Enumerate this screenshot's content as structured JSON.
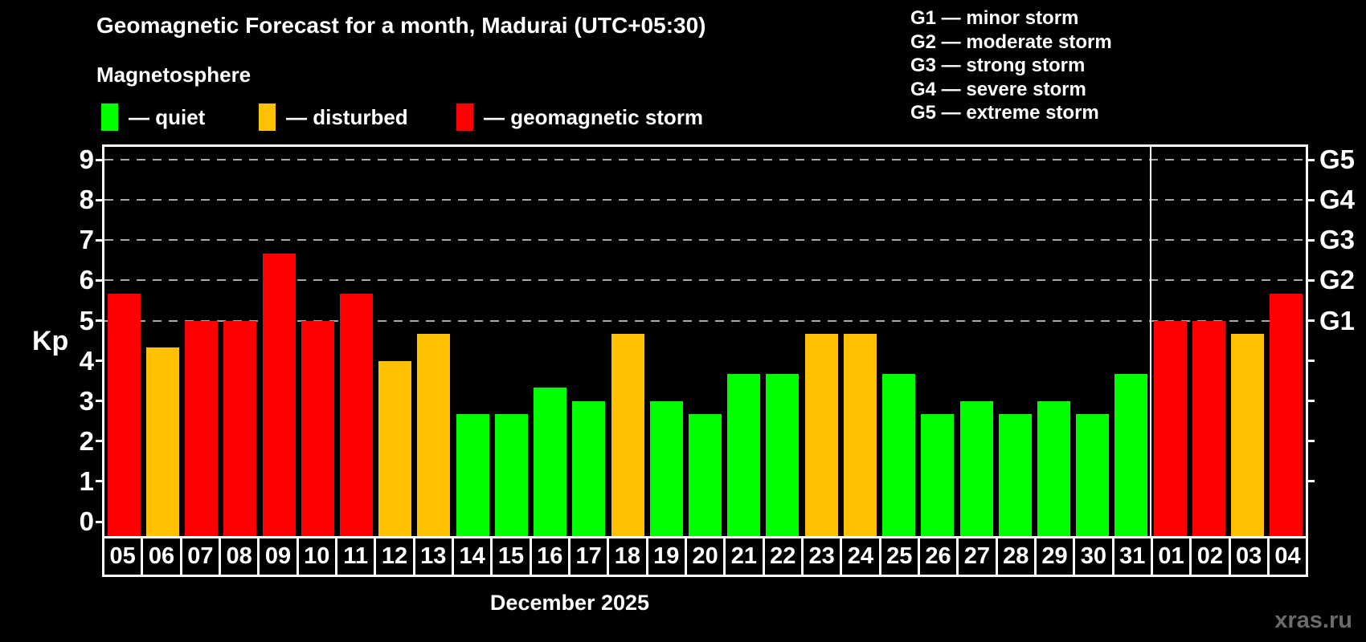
{
  "page": {
    "title": "Geomagnetic Forecast for a month, Madurai (UTC+05:30)",
    "subtitle": "Magnetosphere",
    "watermark": "xras.ru"
  },
  "status_legend": [
    {
      "key": "quiet",
      "label": "— quiet",
      "color": "#00ff00"
    },
    {
      "key": "disturbed",
      "label": "— disturbed",
      "color": "#ffc000"
    },
    {
      "key": "storm",
      "label": "— geomagnetic storm",
      "color": "#ff0000"
    }
  ],
  "g_scale_legend": [
    "G1 — minor storm",
    "G2 — moderate storm",
    "G3 — strong storm",
    "G4 — severe storm",
    "G5 — extreme storm"
  ],
  "footer": {
    "month_label": "December 2025"
  },
  "colors": {
    "background": "#000000",
    "text": "#ffffff",
    "grid": "#a8a8a8",
    "quiet": "#00ff00",
    "disturbed": "#ffc000",
    "storm": "#ff0000",
    "watermark": "#6b6b6b"
  },
  "chart_data": {
    "type": "bar",
    "title": "Geomagnetic Forecast for a month, Madurai (UTC+05:30)",
    "subtitle": "Magnetosphere",
    "xlabel": "December 2025",
    "ylabel": "Kp",
    "ylim": [
      0,
      9.33
    ],
    "grid": "horizontal dashed lines at Kp 5,6,7,8,9 (G1–G5 levels)",
    "legend_position": "top",
    "categories": [
      "05",
      "06",
      "07",
      "08",
      "09",
      "10",
      "11",
      "12",
      "13",
      "14",
      "15",
      "16",
      "17",
      "18",
      "19",
      "20",
      "21",
      "22",
      "23",
      "24",
      "25",
      "26",
      "27",
      "28",
      "29",
      "30",
      "31",
      "01",
      "02",
      "03",
      "04"
    ],
    "values": [
      5.67,
      4.33,
      5,
      5,
      6.67,
      5,
      5.67,
      4,
      4.67,
      2.67,
      2.67,
      3.33,
      3,
      4.67,
      3,
      2.67,
      3.67,
      3.67,
      4.67,
      4.67,
      3.67,
      2.67,
      3,
      2.67,
      3,
      2.67,
      3.67,
      5,
      5,
      4.67,
      5.67
    ],
    "statuses": [
      "storm",
      "disturbed",
      "storm",
      "storm",
      "storm",
      "storm",
      "storm",
      "disturbed",
      "disturbed",
      "quiet",
      "quiet",
      "quiet",
      "quiet",
      "disturbed",
      "quiet",
      "quiet",
      "quiet",
      "quiet",
      "disturbed",
      "disturbed",
      "quiet",
      "quiet",
      "quiet",
      "quiet",
      "quiet",
      "quiet",
      "quiet",
      "storm",
      "storm",
      "disturbed",
      "storm"
    ],
    "new_month_start_index": 27,
    "left_axis_ticks": [
      0,
      1,
      2,
      3,
      4,
      5,
      6,
      7,
      8,
      9
    ],
    "right_axis_ticks": [
      1,
      2,
      3,
      4,
      5,
      6,
      7,
      8,
      9
    ],
    "right_axis_labels": [
      {
        "kp": 5,
        "label": "G1"
      },
      {
        "kp": 6,
        "label": "G2"
      },
      {
        "kp": 7,
        "label": "G3"
      },
      {
        "kp": 8,
        "label": "G4"
      },
      {
        "kp": 9,
        "label": "G5"
      }
    ],
    "gridline_kps": [
      5,
      6,
      7,
      8,
      9
    ]
  }
}
